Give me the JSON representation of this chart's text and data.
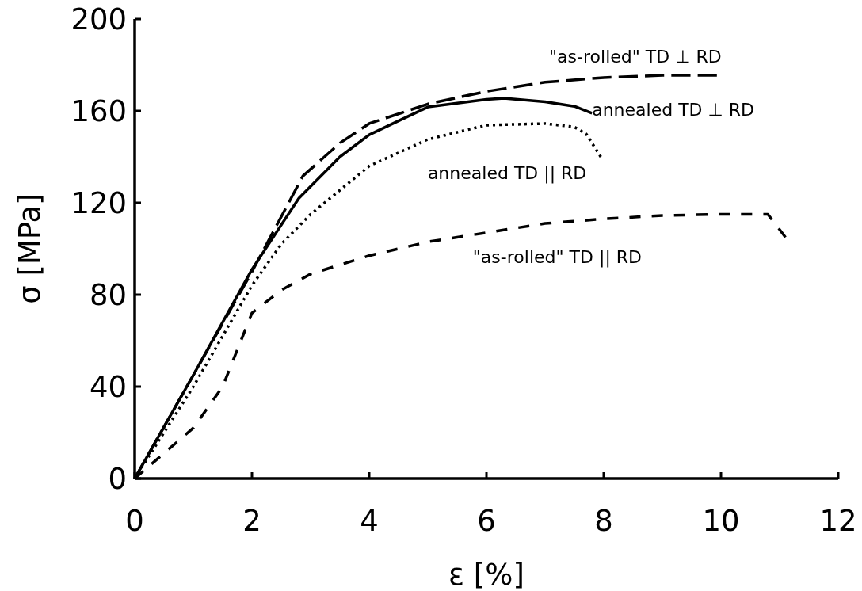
{
  "chart_data": {
    "type": "line",
    "xlabel": "ε [%]",
    "ylabel": "σ [MPa]",
    "xlim": [
      0,
      12
    ],
    "ylim": [
      0,
      200
    ],
    "xticks": [
      0,
      2,
      4,
      6,
      8,
      10,
      12
    ],
    "yticks": [
      0,
      40,
      80,
      120,
      160,
      200
    ],
    "marker": "none",
    "series": [
      {
        "name": "\"as-rolled\" TD ⊥ RD",
        "color": "#000000",
        "line_style": "dashed",
        "x": [
          0,
          1,
          2,
          2.87,
          3.5,
          4,
          5,
          6,
          7,
          8,
          9,
          9.93
        ],
        "values": [
          0,
          45,
          90,
          131.7,
          146,
          154.5,
          163,
          168.5,
          172.5,
          174.5,
          175.5,
          175.5
        ]
      },
      {
        "name": "annealed TD ⊥ RD",
        "color": "#000000",
        "line_style": "solid",
        "x": [
          0,
          1,
          2,
          2.8,
          3.5,
          4,
          5,
          6,
          6.3,
          7,
          7.5,
          7.8
        ],
        "values": [
          0,
          45,
          91,
          122,
          140,
          149.6,
          161.7,
          165,
          165.5,
          164,
          162,
          159
        ]
      },
      {
        "name": "annealed TD || RD",
        "color": "#000000",
        "line_style": "dotted",
        "x": [
          0,
          1,
          2,
          2.5,
          3,
          4,
          5,
          6,
          7,
          7.5,
          7.7,
          7.95
        ],
        "values": [
          0,
          40,
          84,
          102,
          115,
          136,
          147.6,
          153.8,
          154.5,
          153,
          150,
          140
        ]
      },
      {
        "name": "\"as-rolled\" TD || RD",
        "color": "#000000",
        "line_style": "dashed",
        "x": [
          0,
          1,
          1.5,
          2,
          2.5,
          3,
          4,
          5,
          6,
          7,
          8,
          9,
          10,
          10.8,
          11.1
        ],
        "values": [
          0,
          22,
          40,
          72,
          82,
          89,
          97,
          103,
          107,
          111,
          113,
          114.5,
          115,
          115,
          105
        ]
      }
    ]
  }
}
